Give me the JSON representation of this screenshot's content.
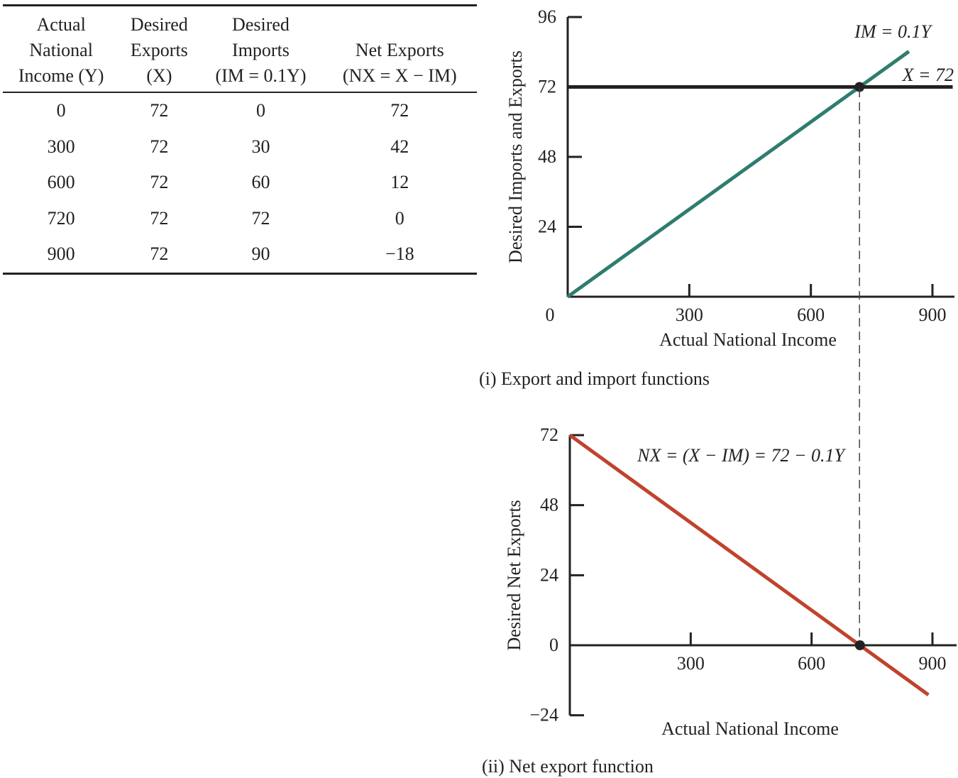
{
  "table": {
    "headers": [
      [
        "Actual",
        "National",
        "Income (Y)"
      ],
      [
        "Desired",
        "Exports",
        "(X)"
      ],
      [
        "Desired",
        "Imports",
        "(IM = 0.1Y)"
      ],
      [
        "",
        "Net Exports",
        "(NX = X − IM)"
      ]
    ],
    "rows": [
      [
        "0",
        "72",
        "0",
        "72"
      ],
      [
        "300",
        "72",
        "30",
        "42"
      ],
      [
        "600",
        "72",
        "60",
        "12"
      ],
      [
        "720",
        "72",
        "72",
        "0"
      ],
      [
        "900",
        "72",
        "90",
        "−18"
      ]
    ]
  },
  "chart_data": [
    {
      "type": "line",
      "caption": "(i) Export and import functions",
      "xlabel": "Actual National Income",
      "ylabel": "Desired Imports and Exports",
      "xlim": [
        0,
        900
      ],
      "ylim": [
        0,
        96
      ],
      "xticks": [
        "0",
        "300",
        "600",
        "900"
      ],
      "yticks": [
        "24",
        "48",
        "72",
        "96"
      ],
      "series": [
        {
          "name": "IM = 0.1Y",
          "x": [
            0,
            842
          ],
          "y": [
            0,
            84.2
          ],
          "color": "#2e7d6e"
        },
        {
          "name": "X = 72",
          "x": [
            0,
            950
          ],
          "y": [
            72,
            72
          ],
          "color": "#222222"
        }
      ],
      "point": {
        "x": 720,
        "y": 72
      }
    },
    {
      "type": "line",
      "caption": "(ii) Net export function",
      "xlabel": "Actual National Income",
      "ylabel": "Desired Net Exports",
      "xlim": [
        0,
        900
      ],
      "ylim": [
        -24,
        72
      ],
      "xticks": [
        "300",
        "600",
        "900"
      ],
      "yticks": [
        "−24",
        "0",
        "24",
        "48",
        "72"
      ],
      "series": [
        {
          "name": "NX = (X − IM) = 72 − 0.1Y",
          "x": [
            0,
            890
          ],
          "y": [
            72,
            -17
          ],
          "color": "#c0432c"
        }
      ],
      "point": {
        "x": 720,
        "y": 0
      }
    }
  ]
}
